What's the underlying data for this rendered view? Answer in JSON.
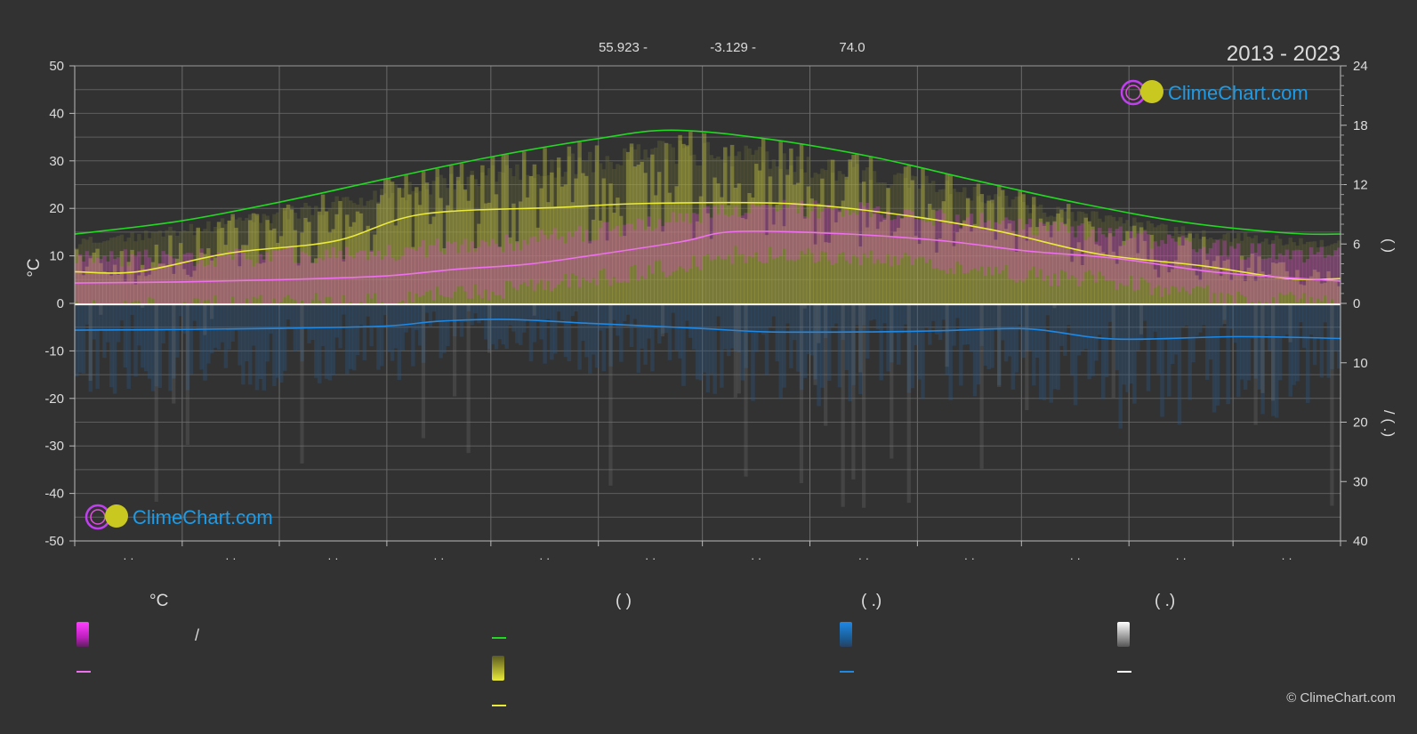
{
  "header": {
    "latitude": "55.923 -",
    "longitude": "-3.129 -",
    "elevation": "74.0",
    "year_range": "2013 - 2023"
  },
  "brand": {
    "name": "ClimeChart.com",
    "copyright": "© ClimeChart.com"
  },
  "axes": {
    "left_unit": "°C",
    "left_ticks": [
      "50",
      "40",
      "30",
      "20",
      "10",
      "0",
      "-10",
      "-20",
      "-30",
      "-40",
      "-50"
    ],
    "right_top_ticks": [
      "24",
      "18",
      "12",
      "6",
      "0"
    ],
    "right_bottom_ticks": [
      "10",
      "20",
      "30",
      "40"
    ],
    "right_top_label": "(   )",
    "right_bottom_label": "/   (   .)",
    "month_labels": [
      "· ·",
      "· ·",
      "· ·",
      "· ·",
      "· ·",
      "· ·",
      "· ·",
      "· ·",
      "· ·",
      "· ·",
      "· ·",
      "· ·"
    ]
  },
  "legend": {
    "col1": {
      "heading": "°C",
      "row1_text": "/"
    },
    "col2": {
      "heading": "(          )"
    },
    "col3": {
      "heading": "(   .)"
    },
    "col4": {
      "heading": "(   .)"
    }
  },
  "colors": {
    "background": "#323232",
    "grid": "#5e5e5e",
    "daylight": "#22d822",
    "sunshine": "#eaea3a",
    "temp_mean": "#ee70ee",
    "temp_band": "#e040e0",
    "precip": "#1e88e5",
    "snow": "#ffffff",
    "brand_blue": "#1e9be6"
  },
  "chart_data": {
    "type": "line",
    "x_range": [
      0,
      365
    ],
    "left_axis": {
      "label": "°C",
      "ylim": [
        -50,
        50
      ]
    },
    "right_axis_top": {
      "ylim": [
        0,
        24
      ]
    },
    "right_axis_bottom": {
      "ylim": [
        0,
        40
      ]
    },
    "series": [
      {
        "axis": "right_top",
        "color": "#22d822",
        "x": [
          0,
          30,
          60,
          90,
          120,
          150,
          172,
          200,
          230,
          260,
          290,
          320,
          350,
          365
        ],
        "values": [
          7.0,
          8.3,
          10.3,
          12.6,
          14.8,
          16.6,
          17.5,
          16.6,
          14.8,
          12.4,
          10.1,
          8.2,
          7.1,
          7.0
        ]
      },
      {
        "axis": "right_top",
        "color": "#eaea3a",
        "x": [
          0,
          18,
          45,
          75,
          100,
          140,
          165,
          205,
          235,
          265,
          295,
          325,
          350,
          365
        ],
        "values": [
          3.2,
          3.2,
          5.1,
          6.3,
          9.0,
          9.7,
          10.1,
          10.1,
          9.1,
          7.4,
          5.0,
          3.8,
          2.5,
          2.5
        ]
      },
      {
        "axis": "left",
        "color": "#ee70ee",
        "x": [
          0,
          30,
          60,
          90,
          110,
          130,
          150,
          175,
          190,
          220,
          250,
          275,
          300,
          330,
          365
        ],
        "values": [
          4.3,
          4.5,
          5.0,
          5.8,
          7.2,
          8.2,
          10.2,
          13.0,
          15.1,
          14.7,
          13.2,
          11.0,
          9.5,
          6.5,
          4.7
        ]
      },
      {
        "axis": "right_bottom",
        "color": "#1e88e5",
        "x": [
          0,
          30,
          60,
          90,
          105,
          125,
          150,
          180,
          200,
          230,
          250,
          275,
          300,
          335,
          365
        ],
        "values": [
          4.5,
          4.4,
          4.2,
          3.8,
          3.0,
          2.7,
          3.4,
          4.2,
          4.8,
          4.8,
          4.6,
          4.3,
          6.0,
          5.6,
          5.9
        ]
      },
      {
        "axis": "left",
        "color": "#ffffff",
        "x": [
          0,
          365
        ],
        "values": [
          -0.2,
          -0.2
        ]
      }
    ]
  }
}
